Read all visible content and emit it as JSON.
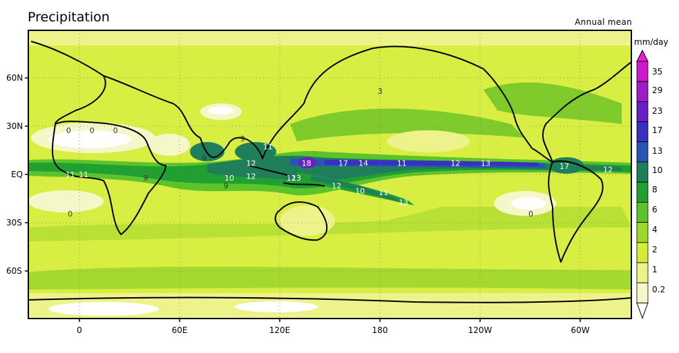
{
  "title": "Precipitation",
  "subtitle": "Annual mean",
  "colorbar": {
    "units": "mm/day",
    "levels": [
      "35",
      "29",
      "23",
      "17",
      "13",
      "10",
      "8",
      "6",
      "4",
      "2",
      "1",
      "0.2"
    ],
    "colors": [
      "#f019d6",
      "#cc19cc",
      "#9b1fc4",
      "#6a1fc4",
      "#3a2fbf",
      "#2756b5",
      "#1f7f5a",
      "#1fa030",
      "#5cc42a",
      "#9cd82c",
      "#d4ec38",
      "#eef28a",
      "#f5f7c8",
      "#ffffff"
    ]
  },
  "axes": {
    "y_ticks": [
      "60N",
      "30N",
      "EQ",
      "30S",
      "60S"
    ],
    "x_ticks": [
      "0",
      "60E",
      "120E",
      "180",
      "120W",
      "60W"
    ]
  },
  "chart_data": {
    "type": "heatmap",
    "variable": "Precipitation",
    "statistic": "Annual mean",
    "units": "mm/day",
    "contour_levels": [
      0.2,
      1,
      2,
      4,
      6,
      8,
      10,
      13,
      17,
      23,
      29,
      35
    ],
    "lon_range": [
      -30,
      330
    ],
    "lat_range": [
      -88,
      88
    ],
    "contour_labels": [
      {
        "lon": -5,
        "lat": 0,
        "value": "11"
      },
      {
        "lon": 3,
        "lat": 0,
        "value": "11"
      },
      {
        "lon": 90,
        "lat": -2,
        "value": "10"
      },
      {
        "lon": 40,
        "lat": -2,
        "value": "9"
      },
      {
        "lon": 75,
        "lat": 10,
        "value": "9"
      },
      {
        "lon": 88,
        "lat": -7,
        "value": "9"
      },
      {
        "lon": 98,
        "lat": 22,
        "value": "9"
      },
      {
        "lon": 113,
        "lat": 17,
        "value": "11"
      },
      {
        "lon": 103,
        "lat": 7,
        "value": "12"
      },
      {
        "lon": 103,
        "lat": -1,
        "value": "12"
      },
      {
        "lon": 127,
        "lat": -2,
        "value": "12"
      },
      {
        "lon": 136,
        "lat": 7,
        "value": "18"
      },
      {
        "lon": 158,
        "lat": 7,
        "value": "17"
      },
      {
        "lon": 170,
        "lat": 7,
        "value": "14"
      },
      {
        "lon": 193,
        "lat": 7,
        "value": "11"
      },
      {
        "lon": 225,
        "lat": 7,
        "value": "12"
      },
      {
        "lon": 243,
        "lat": 7,
        "value": "13"
      },
      {
        "lon": 290,
        "lat": 5,
        "value": "17"
      },
      {
        "lon": 316,
        "lat": 3,
        "value": "12"
      },
      {
        "lon": 130,
        "lat": -2,
        "value": "13"
      },
      {
        "lon": 154,
        "lat": -7,
        "value": "12"
      },
      {
        "lon": 168,
        "lat": -10,
        "value": "10"
      },
      {
        "lon": 182,
        "lat": -11,
        "value": "11"
      },
      {
        "lon": 194,
        "lat": -17,
        "value": "13"
      },
      {
        "lon": -6,
        "lat": 27,
        "value": "0"
      },
      {
        "lon": 8,
        "lat": 27,
        "value": "0"
      },
      {
        "lon": 22,
        "lat": 27,
        "value": "0"
      },
      {
        "lon": -5,
        "lat": -24,
        "value": "0"
      },
      {
        "lon": 270,
        "lat": -24,
        "value": "0"
      },
      {
        "lon": 180,
        "lat": 51,
        "value": "3"
      }
    ]
  }
}
